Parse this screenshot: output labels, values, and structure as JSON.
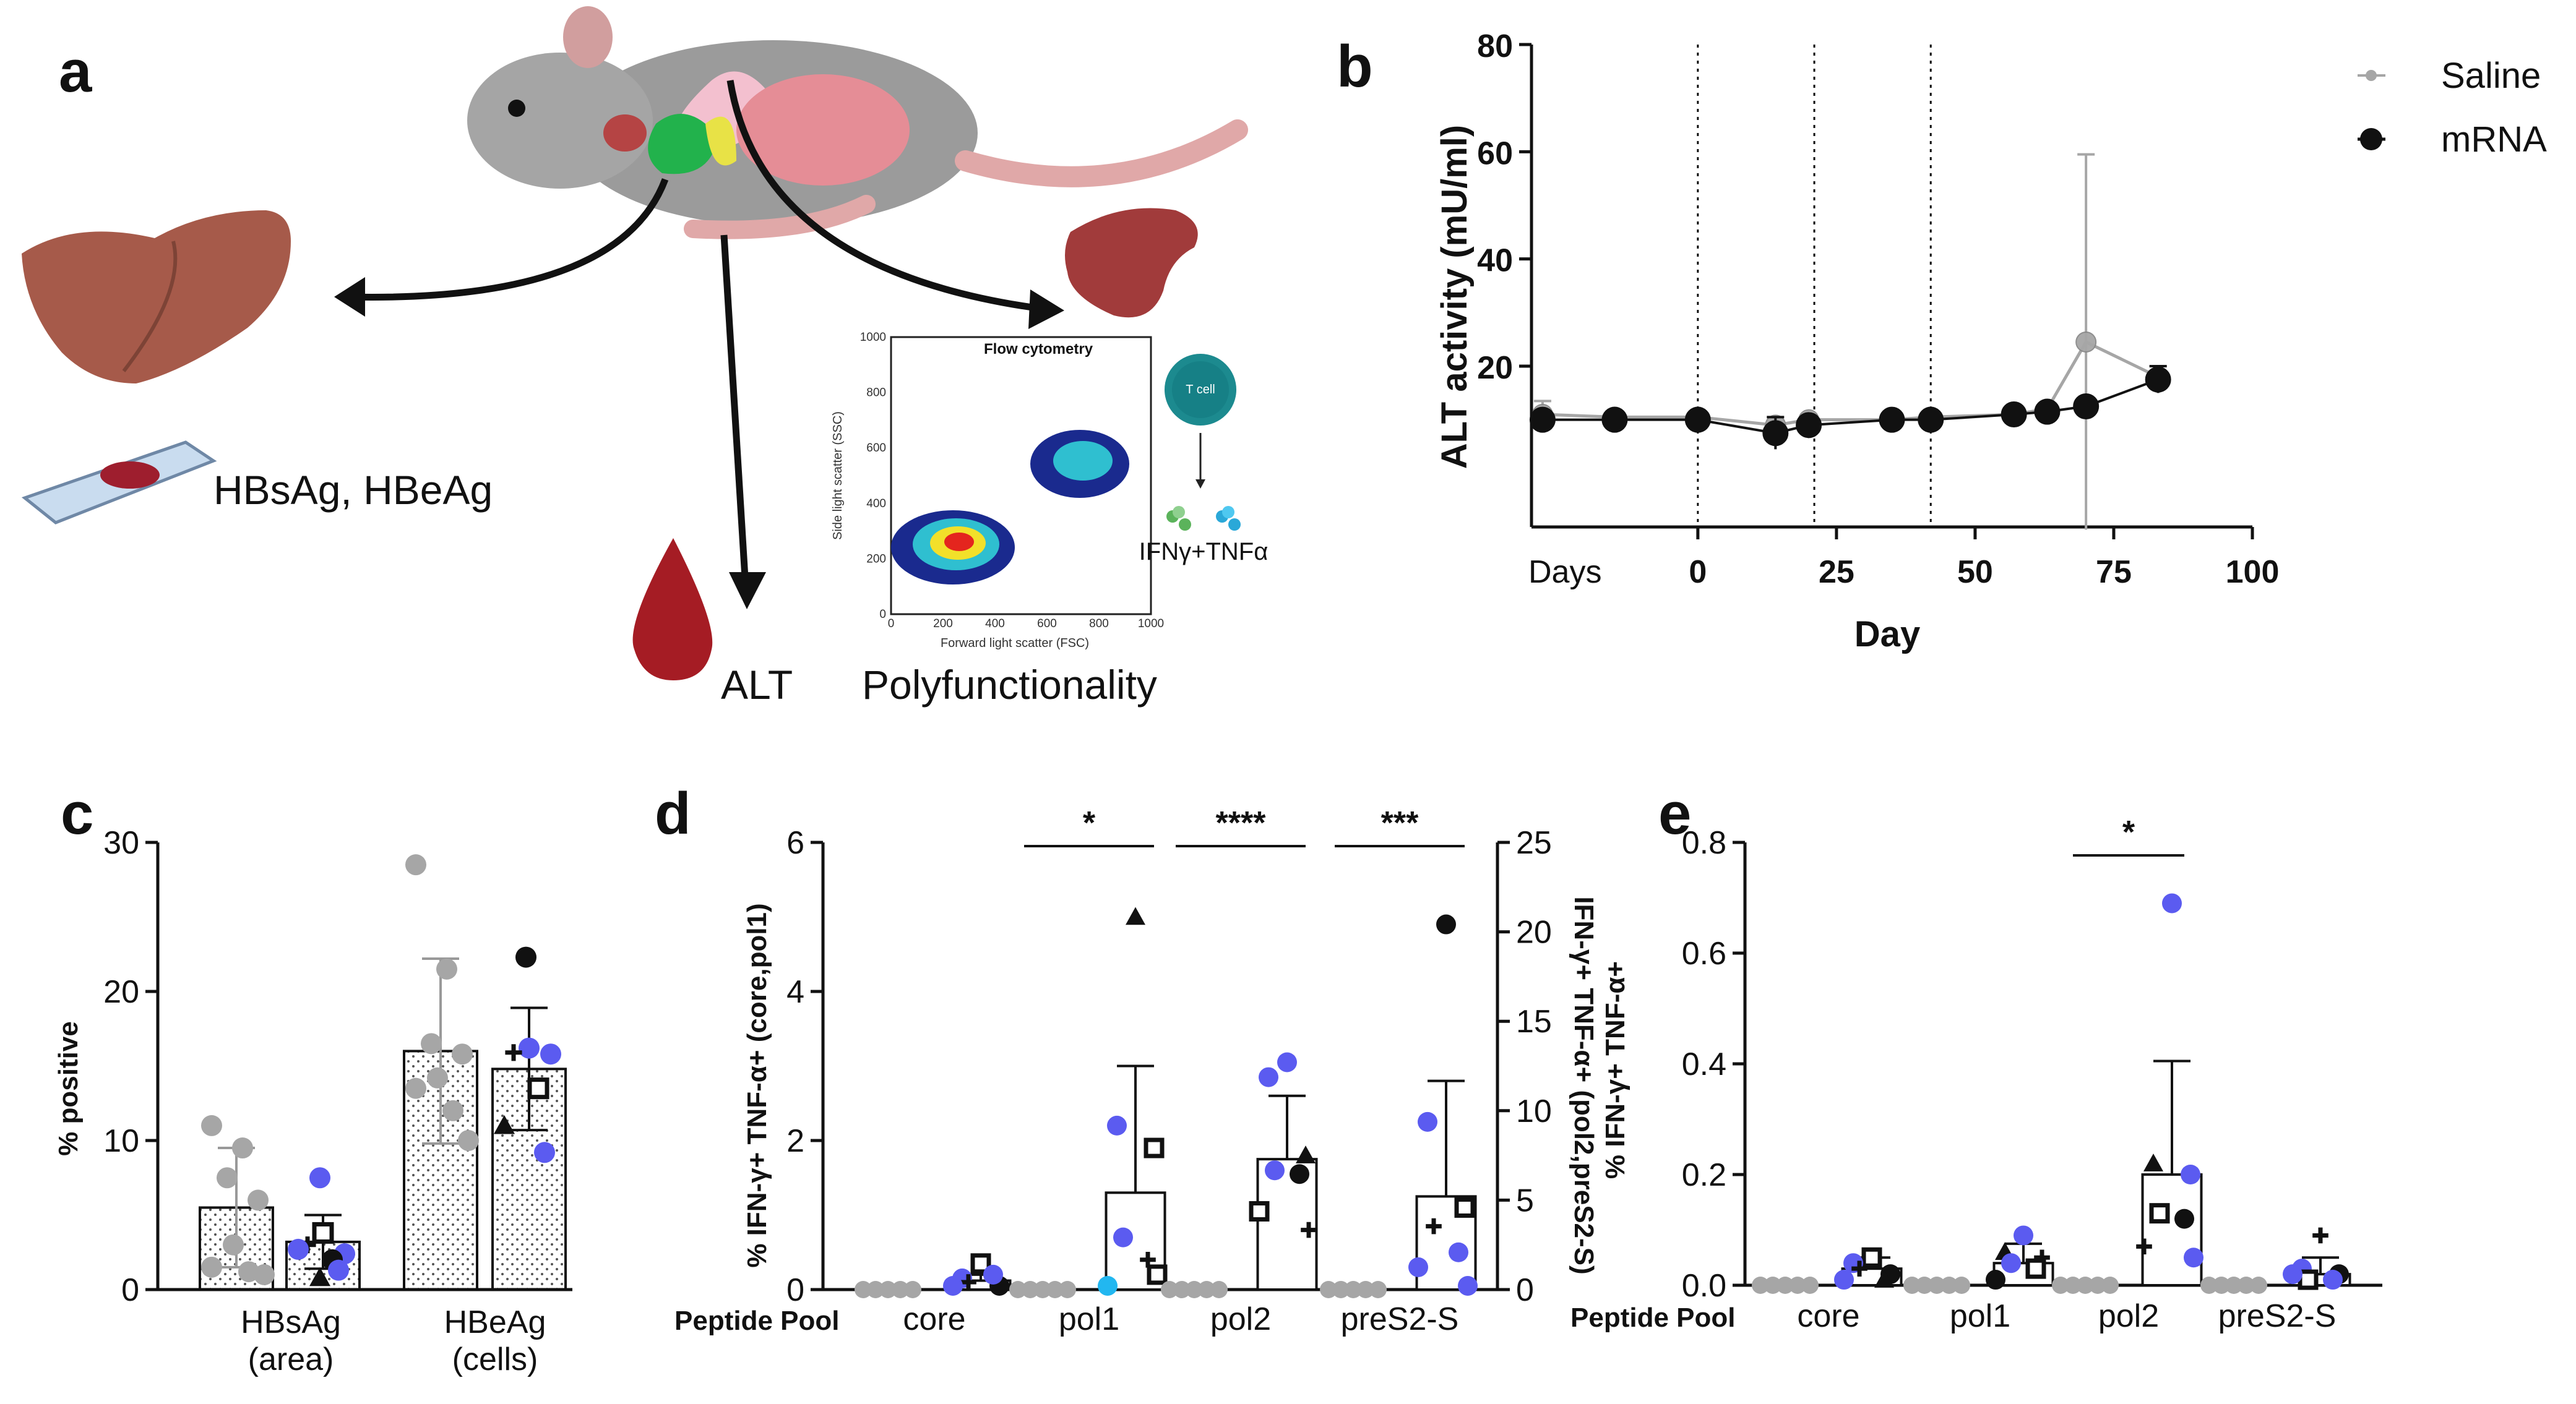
{
  "panel_labels": {
    "a": "a",
    "b": "b",
    "c": "c",
    "d": "d",
    "e": "e"
  },
  "colors": {
    "grey": "#a6a6a6",
    "black": "#111111",
    "blue": "#5b5bf0",
    "cyan": "#22b7f0",
    "liver": "#a65a4a",
    "blood": "#a51c24"
  },
  "schematic": {
    "liver_label": "HBsAg, HBeAg",
    "blood_label": "ALT",
    "spleen_label": "Polyfunctionality",
    "flow_title": "Flow cytometry",
    "flow_xlabel": "Forward light scatter (FSC)",
    "flow_ylabel": "Side light scatter (SSC)",
    "flow_xticks": [
      "0",
      "200",
      "400",
      "600",
      "800",
      "1000"
    ],
    "flow_yticks": [
      "0",
      "200",
      "400",
      "600",
      "800",
      "1000"
    ],
    "tcell_label": "T cell",
    "cytokine_label": "IFNγ+TNFα"
  },
  "chart_data": [
    {
      "panel": "b",
      "type": "line",
      "xlabel": "Day",
      "ylabel": "ALT activity (mU/ml)",
      "xlim": [
        -30,
        100
      ],
      "ylim": [
        -10,
        80
      ],
      "xticks": [
        "Days",
        "0",
        "25",
        "50",
        "75",
        "100"
      ],
      "yticks": [
        "20",
        "40",
        "60",
        "80"
      ],
      "ytick_values": [
        20,
        40,
        60,
        80
      ],
      "vlines": [
        0,
        21,
        42
      ],
      "series": [
        {
          "name": "Saline",
          "color": "#a6a6a6",
          "x": [
            -28,
            -15,
            0,
            14,
            20,
            35,
            42,
            57,
            63,
            70,
            83
          ],
          "y": [
            11,
            10.5,
            10.5,
            9,
            10,
            10,
            10.5,
            11,
            12,
            24.5,
            18
          ],
          "err": [
            2.5,
            0.6,
            0.6,
            0.8,
            0.8,
            0.5,
            0.6,
            0.6,
            0.8,
            35,
            2
          ]
        },
        {
          "name": "mRNA",
          "color": "#111111",
          "x": [
            -28,
            -15,
            0,
            14,
            20,
            35,
            42,
            57,
            63,
            70,
            83
          ],
          "y": [
            10,
            10,
            10,
            7.5,
            9,
            10,
            10,
            11,
            11.5,
            12.5,
            17.5
          ],
          "err": [
            0.6,
            0.6,
            0.6,
            3,
            1.5,
            0.6,
            0.6,
            0.6,
            0.6,
            1,
            2.5
          ]
        }
      ]
    },
    {
      "panel": "c",
      "type": "bar",
      "ylabel": "% positive",
      "ylim": [
        0,
        30
      ],
      "yticks": [
        "0",
        "10",
        "20",
        "30"
      ],
      "ytick_values": [
        0,
        10,
        20,
        30
      ],
      "categories": [
        "HBsAg\n(area)",
        "HBeAg\n(cells)"
      ],
      "category_lines": [
        [
          "HBsAg",
          "(area)"
        ],
        [
          "HBeAg",
          "(cells)"
        ]
      ],
      "series": [
        {
          "name": "Saline",
          "values": [
            5.5,
            16
          ],
          "err": [
            4,
            6.2
          ],
          "points": [
            {
              "v": 11,
              "c": "grey"
            },
            {
              "v": 9.5,
              "c": "grey"
            },
            {
              "v": 7.5,
              "c": "grey"
            },
            {
              "v": 6,
              "c": "grey"
            },
            {
              "v": 3,
              "c": "grey"
            },
            {
              "v": 1.5,
              "c": "grey"
            },
            {
              "v": 1.2,
              "c": "grey"
            },
            {
              "v": 1,
              "c": "grey"
            }
          ]
        },
        {
          "name": "mRNA",
          "values": [
            3.2,
            14.8
          ],
          "err": [
            1.8,
            4.1
          ]
        }
      ],
      "points_b": [
        [
          {
            "v": 7.5,
            "c": "blue"
          },
          {
            "v": 3.8,
            "c": "sqr"
          },
          {
            "v": 3,
            "c": "plus"
          },
          {
            "v": 2.4,
            "c": "blue"
          },
          {
            "v": 2,
            "c": "black"
          },
          {
            "v": 2.7,
            "c": "blue"
          },
          {
            "v": 1.3,
            "c": "blue"
          },
          {
            "v": 0.8,
            "c": "tri"
          }
        ],
        [
          {
            "v": 22.3,
            "c": "black"
          },
          {
            "v": 16.2,
            "c": "blue"
          },
          {
            "v": 15.9,
            "c": "plus"
          },
          {
            "v": 15.8,
            "c": "blue"
          },
          {
            "v": 13.5,
            "c": "sqr"
          },
          {
            "v": 11,
            "c": "tri"
          },
          {
            "v": 9.2,
            "c": "blue"
          }
        ]
      ],
      "points_a_heag": [
        28.5,
        21.5,
        16.5,
        15.8,
        14.2,
        13.5,
        12,
        10
      ]
    },
    {
      "panel": "d",
      "type": "bar",
      "ylabel_left": "% IFN-γ+ TNF-α+ (core,pol1)",
      "ylabel_right": "IFN-γ+ TNF-α+ (pol2,preS2-S)",
      "ylim_left": [
        0,
        6
      ],
      "ylim_right": [
        0,
        25
      ],
      "yticks_left": [
        "0",
        "2",
        "4",
        "6"
      ],
      "yticks_right": [
        "0",
        "5",
        "10",
        "15",
        "20",
        "25"
      ],
      "xlabel": "Peptide Pool",
      "categories": [
        "core",
        "pol1",
        "pol2",
        "preS2-S"
      ],
      "significance": [
        "",
        "*",
        "****",
        "***"
      ],
      "saline_values": [
        0,
        0,
        0,
        0
      ],
      "mrna_values_left_units": [
        0.12,
        1.3,
        1.75,
        1.25
      ],
      "mrna_err_left_units": [
        0.08,
        1.7,
        0.85,
        1.55
      ],
      "mrna_points_left_units": [
        [
          {
            "v": 0.35,
            "c": "sqr"
          },
          {
            "v": 0.15,
            "c": "blue"
          },
          {
            "v": 0.05,
            "c": "black"
          },
          {
            "v": 0.1,
            "c": "plus"
          },
          {
            "v": 0.2,
            "c": "blue"
          },
          {
            "v": 0.05,
            "c": "blue"
          }
        ],
        [
          {
            "v": 5,
            "c": "tri"
          },
          {
            "v": 2.2,
            "c": "blue"
          },
          {
            "v": 1.9,
            "c": "sqr"
          },
          {
            "v": 0.7,
            "c": "blue"
          },
          {
            "v": 0.4,
            "c": "plus"
          },
          {
            "v": 0.05,
            "c": "cyan"
          },
          {
            "v": 0.2,
            "c": "sqr"
          }
        ],
        [
          {
            "v": 3.05,
            "c": "blue"
          },
          {
            "v": 2.85,
            "c": "blue"
          },
          {
            "v": 1.8,
            "c": "tri"
          },
          {
            "v": 1.6,
            "c": "blue"
          },
          {
            "v": 1.55,
            "c": "black"
          },
          {
            "v": 1.05,
            "c": "sqr"
          },
          {
            "v": 0.8,
            "c": "plus"
          }
        ],
        [
          {
            "v": 4.9,
            "c": "black"
          },
          {
            "v": 2.25,
            "c": "blue"
          },
          {
            "v": 1.1,
            "c": "sqr"
          },
          {
            "v": 0.85,
            "c": "plus"
          },
          {
            "v": 0.5,
            "c": "blue"
          },
          {
            "v": 0.3,
            "c": "blue"
          },
          {
            "v": 0.05,
            "c": "blue"
          }
        ]
      ]
    },
    {
      "panel": "e",
      "type": "bar",
      "ylabel": "% IFN-γ+ TNF-α+",
      "ylim": [
        0,
        0.8
      ],
      "yticks": [
        "0.0",
        "0.2",
        "0.4",
        "0.6",
        "0.8"
      ],
      "ytick_values": [
        0,
        0.2,
        0.4,
        0.6,
        0.8
      ],
      "xlabel": "Peptide Pool",
      "categories": [
        "core",
        "pol1",
        "pol2",
        "preS2-S"
      ],
      "significance": [
        "",
        "",
        "*",
        ""
      ],
      "saline_values": [
        0,
        0,
        0,
        0
      ],
      "mrna_values": [
        0.03,
        0.04,
        0.2,
        0.02
      ],
      "mrna_err": [
        0.02,
        0.035,
        0.205,
        0.03
      ],
      "mrna_points": [
        [
          {
            "v": 0.05,
            "c": "sqr"
          },
          {
            "v": 0.04,
            "c": "blue"
          },
          {
            "v": 0.02,
            "c": "black"
          },
          {
            "v": 0.03,
            "c": "plus"
          },
          {
            "v": 0.01,
            "c": "tri"
          },
          {
            "v": 0.01,
            "c": "blue"
          }
        ],
        [
          {
            "v": 0.09,
            "c": "blue"
          },
          {
            "v": 0.06,
            "c": "tri"
          },
          {
            "v": 0.05,
            "c": "plus"
          },
          {
            "v": 0.04,
            "c": "blue"
          },
          {
            "v": 0.03,
            "c": "sqr"
          },
          {
            "v": 0.01,
            "c": "black"
          }
        ],
        [
          {
            "v": 0.69,
            "c": "blue"
          },
          {
            "v": 0.22,
            "c": "tri"
          },
          {
            "v": 0.2,
            "c": "blue"
          },
          {
            "v": 0.13,
            "c": "sqr"
          },
          {
            "v": 0.12,
            "c": "black"
          },
          {
            "v": 0.07,
            "c": "plus"
          },
          {
            "v": 0.05,
            "c": "blue"
          }
        ],
        [
          {
            "v": 0.09,
            "c": "plus"
          },
          {
            "v": 0.03,
            "c": "blue"
          },
          {
            "v": 0.02,
            "c": "black"
          },
          {
            "v": 0.01,
            "c": "sqr"
          },
          {
            "v": 0.01,
            "c": "blue"
          },
          {
            "v": 0.02,
            "c": "blue"
          }
        ]
      ]
    }
  ]
}
